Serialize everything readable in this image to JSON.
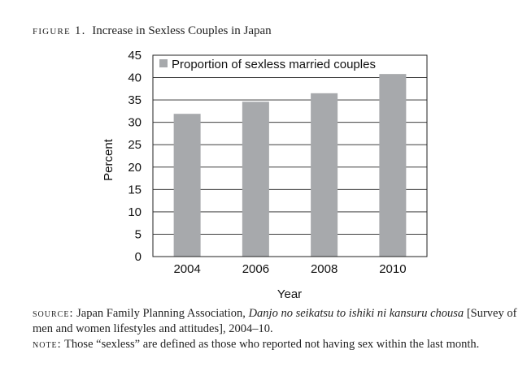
{
  "figure": {
    "label": "figure 1.",
    "title": "Increase in Sexless Couples in Japan"
  },
  "chart_data": {
    "type": "bar",
    "categories": [
      "2004",
      "2006",
      "2008",
      "2010"
    ],
    "series": [
      {
        "name": "Proportion of sexless married couples",
        "values": [
          31.9,
          34.6,
          36.5,
          40.8
        ]
      }
    ],
    "xlabel": "Year",
    "ylabel": "Percent",
    "ylim": [
      0,
      45
    ],
    "yticks": [
      "0",
      "5",
      "10",
      "15",
      "20",
      "25",
      "30",
      "35",
      "40",
      "45"
    ],
    "grid": true,
    "legend_position": "top",
    "bar_color": "#a7a9ac"
  },
  "source": {
    "label": "source:",
    "text_before": " Japan Family Planning Association, ",
    "title_italic": "Danjo no seikatsu to ishiki ni kansuru chousa",
    "text_after": " [Survey of men and women lifestyles and attitudes], 2004–10."
  },
  "note": {
    "label": "note:",
    "text": " Those “sexless” are defined as those who reported not having sex within the last month."
  }
}
